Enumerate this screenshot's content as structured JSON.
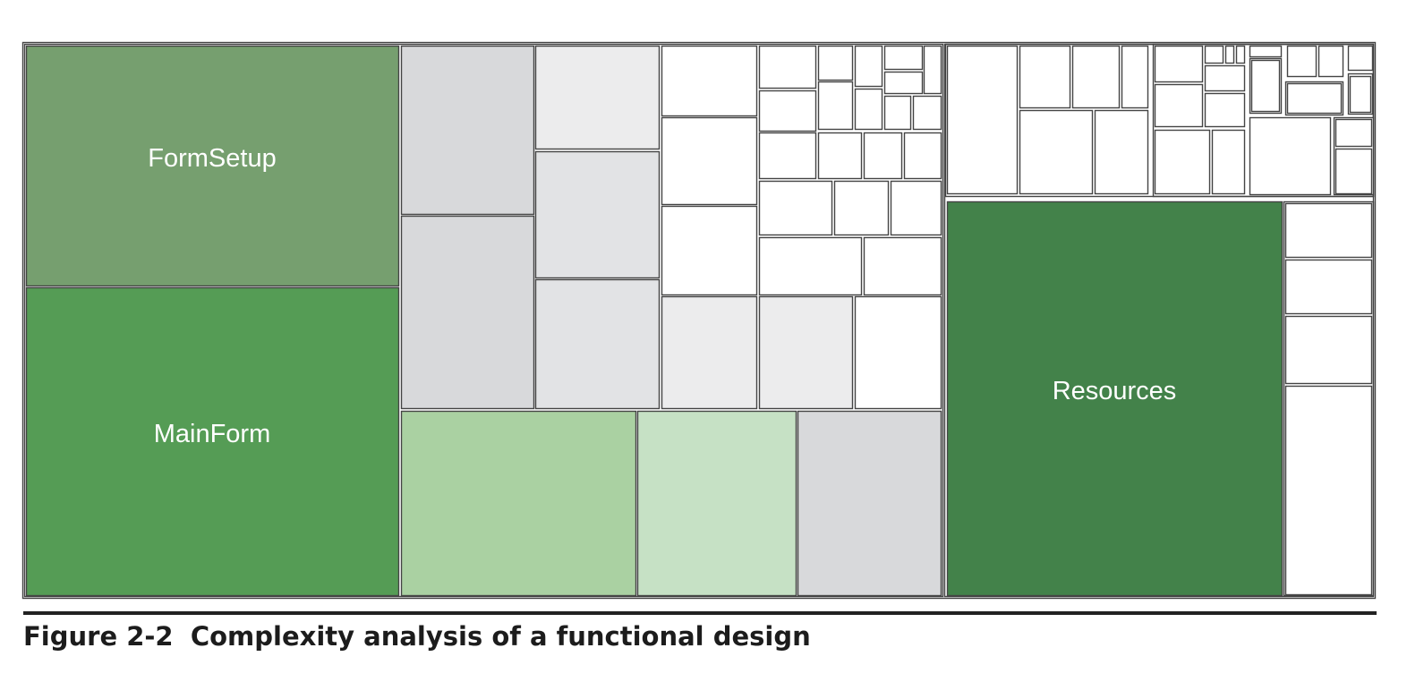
{
  "figure": {
    "number": "Figure 2-2",
    "title": "Complexity analysis of a functional design"
  },
  "colors": {
    "border": "#444444",
    "white": "#ffffff",
    "light_gray": "#ececed",
    "mid_gray": "#e2e3e5",
    "gray": "#d8d9db",
    "pale_green": "#c6e1c5",
    "light_green": "#aad1a2",
    "muted_green": "#769f6f",
    "green": "#559c55",
    "dark_green": "#43824a",
    "label": "#ffffff"
  },
  "labels": {
    "form_setup": "FormSetup",
    "main_form": "MainForm",
    "resources": "Resources"
  }
}
